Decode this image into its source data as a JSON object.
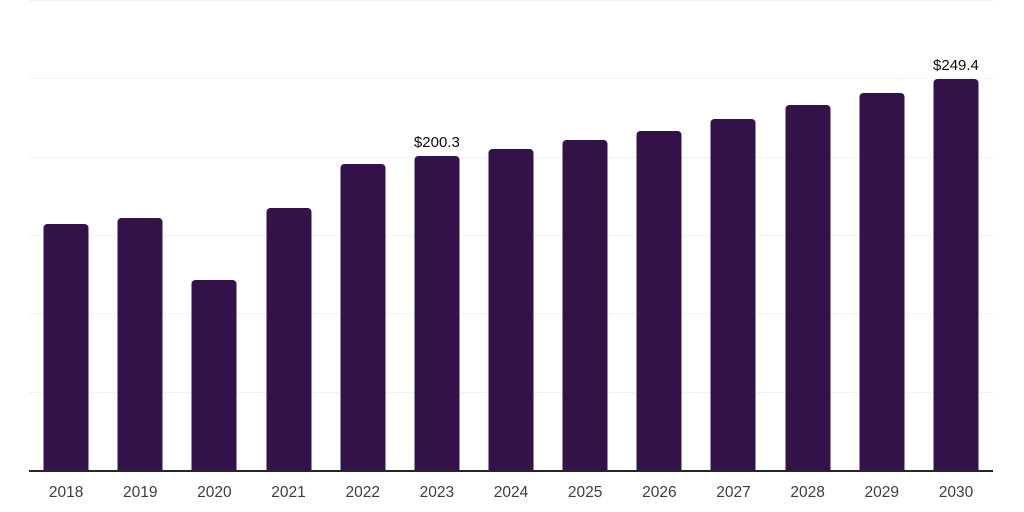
{
  "chart_data": {
    "type": "bar",
    "title": "",
    "xlabel": "",
    "ylabel": "",
    "categories": [
      "2018",
      "2019",
      "2020",
      "2021",
      "2022",
      "2023",
      "2024",
      "2025",
      "2026",
      "2027",
      "2028",
      "2029",
      "2030"
    ],
    "values": [
      157.0,
      160.8,
      121.3,
      167.2,
      195.2,
      200.3,
      204.8,
      210.5,
      216.2,
      223.9,
      232.8,
      240.4,
      249.4
    ],
    "data_labels": [
      "",
      "",
      "",
      "",
      "",
      "$200.3",
      "",
      "",
      "",
      "",
      "",
      "",
      "$249.4"
    ],
    "ylim": [
      0,
      300
    ],
    "gridline_interval": 50,
    "grid": "on",
    "legend": "none",
    "colors": {
      "bar": "#331249",
      "axis_line": "#262626",
      "gridline": "#f2f2f2",
      "data_label": "#0d0d0d",
      "tick_label": "#3d3d3d",
      "background": "#ffffff"
    }
  }
}
